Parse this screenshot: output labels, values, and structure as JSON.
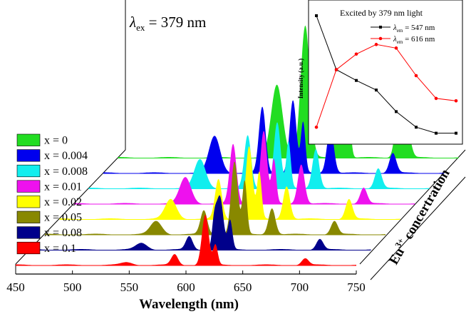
{
  "chart_data": [
    {
      "type": "area",
      "subtype": "waterfall-3d",
      "annotation_prefix": "λ",
      "annotation_sub": "ex",
      "annotation_rest": " = 379 nm",
      "xlabel": "Wavelength (nm)",
      "depth_label_prefix": "Eu",
      "depth_label_sup": "3+",
      "depth_label_suffix": " concertration",
      "xlim": [
        450,
        750
      ],
      "xticks": [
        450,
        500,
        550,
        600,
        650,
        700,
        750
      ],
      "series": [
        {
          "name": "x = 0",
          "color": "#22dd22",
          "peaks": [
            [
              590,
              0.55,
              5
            ],
            [
              615,
              1.0,
              4
            ],
            [
              644,
              0.35,
              3
            ],
            [
              653,
              0.38,
              2
            ],
            [
              697,
              0.35,
              3
            ],
            [
              705,
              0.2,
              3
            ]
          ]
        },
        {
          "name": "x = 0.004",
          "color": "#0000ee",
          "peaks": [
            [
              548,
              0.28,
              5
            ],
            [
              590,
              0.5,
              3
            ],
            [
              617,
              0.55,
              3
            ],
            [
              626,
              0.38,
              2
            ],
            [
              650,
              0.35,
              3
            ],
            [
              705,
              0.15,
              3
            ]
          ]
        },
        {
          "name": "x = 0.008",
          "color": "#11eeee",
          "peaks": [
            [
              548,
              0.22,
              5
            ],
            [
              590,
              0.4,
              3
            ],
            [
              616,
              0.5,
              3
            ],
            [
              626,
              0.35,
              2
            ],
            [
              650,
              0.3,
              3
            ],
            [
              705,
              0.15,
              3
            ]
          ]
        },
        {
          "name": "x = 0.01",
          "color": "#ee11ee",
          "peaks": [
            [
              548,
              0.2,
              5
            ],
            [
              590,
              0.45,
              3
            ],
            [
              617,
              0.55,
              3
            ],
            [
              626,
              0.33,
              2
            ],
            [
              650,
              0.3,
              3
            ],
            [
              705,
              0.12,
              3
            ]
          ]
        },
        {
          "name": "x = 0.02",
          "color": "#ffff00",
          "peaks": [
            [
              548,
              0.15,
              5
            ],
            [
              590,
              0.3,
              3
            ],
            [
              617,
              0.55,
              3
            ],
            [
              626,
              0.35,
              2
            ],
            [
              650,
              0.25,
              3
            ],
            [
              705,
              0.15,
              3
            ]
          ]
        },
        {
          "name": "x = 0.05",
          "color": "#888800",
          "peaks": [
            [
              548,
              0.1,
              5
            ],
            [
              590,
              0.18,
              3
            ],
            [
              617,
              0.55,
              3
            ],
            [
              626,
              0.4,
              2
            ],
            [
              650,
              0.2,
              3
            ],
            [
              705,
              0.1,
              3
            ]
          ]
        },
        {
          "name": "x = 0.08",
          "color": "#00008b",
          "peaks": [
            [
              548,
              0.05,
              5
            ],
            [
              590,
              0.1,
              3
            ],
            [
              612,
              0.2,
              2
            ],
            [
              617,
              0.4,
              3
            ],
            [
              626,
              0.22,
              2
            ],
            [
              705,
              0.08,
              3
            ]
          ]
        },
        {
          "name": "x = 0.1",
          "color": "#ff0000",
          "peaks": [
            [
              548,
              0.02,
              5
            ],
            [
              590,
              0.08,
              3
            ],
            [
              617,
              0.38,
              3
            ],
            [
              626,
              0.15,
              2
            ],
            [
              705,
              0.05,
              3
            ]
          ]
        }
      ]
    },
    {
      "type": "line",
      "title": "Excited by 379 nm light",
      "ylabel": "Intensity (a.u.)",
      "x": [
        0,
        1,
        2,
        3,
        4,
        5,
        6,
        7
      ],
      "series": [
        {
          "name_prefix": "λ",
          "name_sub": "em",
          "name_rest": " = 547 nm",
          "color": "#000000",
          "marker": "square",
          "values": [
            1.0,
            0.55,
            0.46,
            0.38,
            0.2,
            0.07,
            0.02,
            0.02
          ]
        },
        {
          "name_prefix": "λ",
          "name_sub": "em",
          "name_rest": " = 616 nm",
          "color": "#ff0000",
          "marker": "circle",
          "values": [
            0.07,
            0.55,
            0.68,
            0.76,
            0.73,
            0.5,
            0.31,
            0.29
          ]
        }
      ]
    }
  ]
}
